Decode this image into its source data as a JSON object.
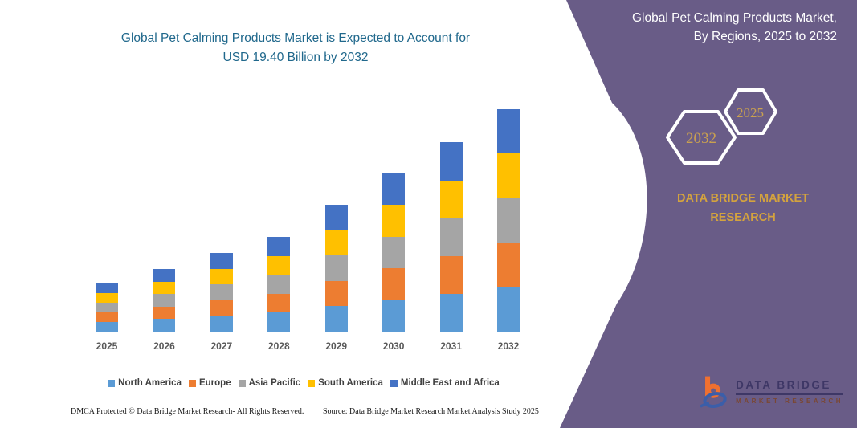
{
  "main_title": {
    "line1": "Global Pet Calming Products Market is Expected to Account for",
    "line2": "USD 19.40 Billion by 2032"
  },
  "side_panel": {
    "title_line1": "Global Pet Calming Products Market,",
    "title_line2": "By Regions, 2025 to 2032",
    "hexagons": {
      "back_year": "2032",
      "front_year": "2025"
    },
    "brand_line1": "DATA BRIDGE MARKET",
    "brand_line2": "RESEARCH",
    "logo": {
      "name": "DATA BRIDGE",
      "subtitle": "MARKET RESEARCH"
    }
  },
  "footer": {
    "dmca": "DMCA Protected © Data Bridge Market Research-  All Rights Reserved.",
    "source": "Source: Data Bridge Market Research  Market Analysis Study 2025"
  },
  "colors": {
    "panel_purple": "#695C87",
    "brand_gold": "#D4A33E",
    "hex_year_gold": "#C9A050",
    "hex_border": "#FFFFFF",
    "main_title": "#20688C",
    "axis_label": "#595959",
    "legend_text": "#404040",
    "axis_line": "#D0CECE",
    "logo_orange": "#F07030",
    "logo_blue": "#3B5EA9"
  },
  "chart_data": {
    "type": "bar",
    "stacked": true,
    "unit": "USD Billion",
    "title": "Global Pet Calming Products Market is Expected to Account for USD 19.40 Billion by 2032",
    "categories": [
      "2025",
      "2026",
      "2027",
      "2028",
      "2029",
      "2030",
      "2031",
      "2032"
    ],
    "series": [
      {
        "name": "North America",
        "color": "#5B9BD5",
        "values": [
          0.84,
          1.09,
          1.37,
          1.65,
          2.21,
          2.76,
          3.3,
          3.88
        ]
      },
      {
        "name": "Europe",
        "color": "#ED7D31",
        "values": [
          0.84,
          1.09,
          1.37,
          1.65,
          2.21,
          2.76,
          3.3,
          3.88
        ]
      },
      {
        "name": "Asia Pacific",
        "color": "#A5A5A5",
        "values": [
          0.84,
          1.09,
          1.37,
          1.65,
          2.21,
          2.76,
          3.3,
          3.88
        ]
      },
      {
        "name": "South America",
        "color": "#FFC000",
        "values": [
          0.84,
          1.09,
          1.37,
          1.65,
          2.21,
          2.76,
          3.3,
          3.88
        ]
      },
      {
        "name": "Middle East and Africa",
        "color": "#4472C4",
        "values": [
          0.84,
          1.09,
          1.37,
          1.65,
          2.21,
          2.76,
          3.3,
          3.88
        ]
      }
    ],
    "totals_estimated": [
      4.2,
      5.45,
      6.85,
      8.25,
      11.05,
      13.8,
      16.5,
      19.4
    ],
    "ylim": [
      0,
      20
    ],
    "y_axis_visible": false,
    "gridlines": false,
    "legend_position": "bottom"
  }
}
